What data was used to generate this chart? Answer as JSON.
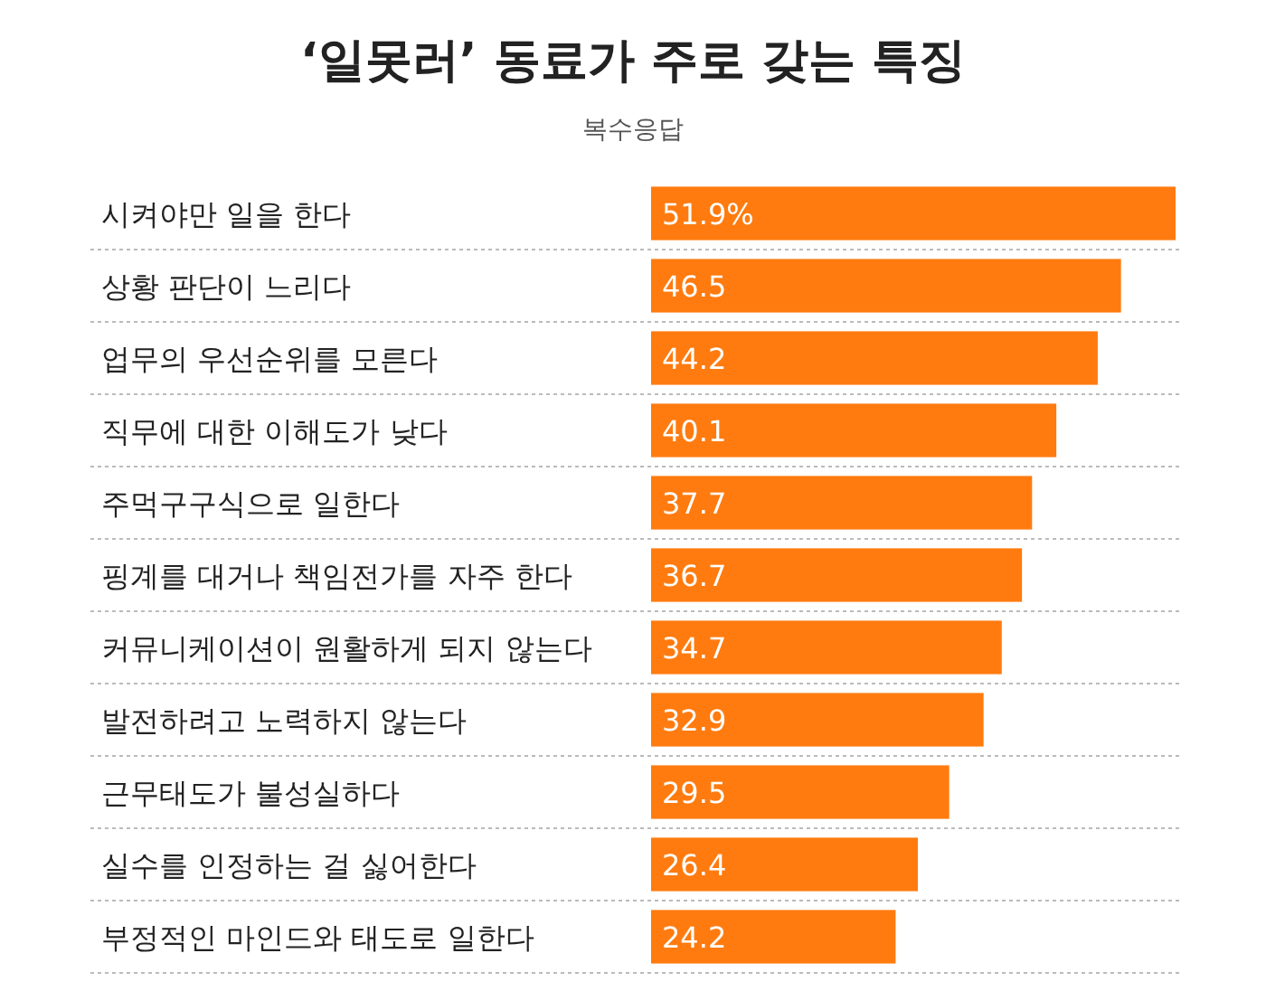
{
  "chart_data": {
    "type": "bar",
    "orientation": "horizontal",
    "title": "‘일못러’ 동료가 주로 갖는 특징",
    "subtitle": "복수응답",
    "categories": [
      "시켜야만 일을 한다",
      "상황 판단이 느리다",
      "업무의 우선순위를 모른다",
      "직무에 대한 이해도가 낮다",
      "주먹구구식으로 일한다",
      "핑계를 대거나 책임전가를 자주 한다",
      "커뮤니케이션이 원활하게 되지 않는다",
      "발전하려고 노력하지 않는다",
      "근무태도가 불성실하다",
      "실수를 인정하는 걸 싫어한다",
      "부정적인 마인드와 태도로 일한다"
    ],
    "values": [
      51.9,
      46.5,
      44.2,
      40.1,
      37.7,
      36.7,
      34.7,
      32.9,
      29.5,
      26.4,
      24.2
    ],
    "value_labels": [
      "51.9%",
      "46.5",
      "44.2",
      "40.1",
      "37.7",
      "36.7",
      "34.7",
      "32.9",
      "29.5",
      "26.4",
      "24.2"
    ],
    "color": "#ff7b0f",
    "grid": "y"
  }
}
